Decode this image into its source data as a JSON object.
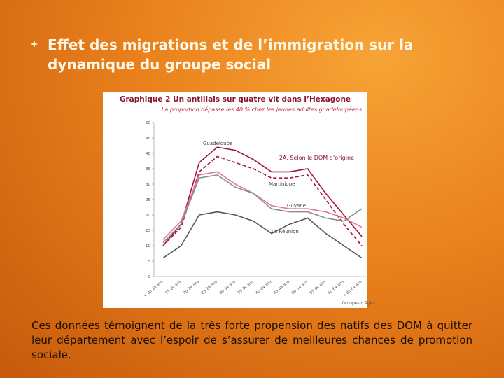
{
  "slide": {
    "title": "Effet des migrations et de l’immigration sur la dynamique du groupe social",
    "body": "Ces données témoignent de la très forte propension des natifs des DOM à quitter leur département avec l’espoir de s’assurer de meilleures chances de promotion sociale."
  },
  "chart_data": {
    "type": "line",
    "title": "Graphique 2 Un antillais sur quatre vit dans l’Hexagone",
    "subtitle": "La proportion dépasse les 40 % chez les jeunes adultes guadeloupéens",
    "annotation": "2A. Selon le DOM d’origine",
    "x_label": "Groupes d’âges",
    "categories": [
      "< de 15 ans",
      "15-19 ans",
      "20-24 ans",
      "25-29 ans",
      "30-34 ans",
      "35-39 ans",
      "40-44 ans",
      "45-49 ans",
      "50-54 ans",
      "55-59 ans",
      "60-64 ans",
      "> de 64 ans"
    ],
    "ylim": [
      0,
      50
    ],
    "yticks": [
      0,
      5,
      10,
      15,
      20,
      25,
      30,
      35,
      40,
      45,
      50
    ],
    "series": [
      {
        "name": "Guadeloupe",
        "color": "#a3123a",
        "values": [
          10,
          17,
          37,
          42,
          41,
          38,
          34,
          34,
          35,
          27,
          20,
          13
        ]
      },
      {
        "color": "#a3123a",
        "dashed": true,
        "values": [
          10,
          16,
          34,
          39,
          37,
          35,
          32,
          32,
          33,
          25,
          17,
          10
        ]
      },
      {
        "name": "Martinique",
        "color": "#e07a8a",
        "values": [
          12,
          18,
          33,
          34,
          30,
          27,
          23,
          22,
          22,
          21,
          19,
          16
        ]
      },
      {
        "name": "Guyane",
        "color": "#8c8c8c",
        "values": [
          11,
          17,
          32,
          33,
          29,
          27,
          22,
          21,
          21,
          19,
          18,
          22
        ]
      },
      {
        "name": "La Réunion",
        "color": "#555555",
        "values": [
          6,
          10,
          20,
          21,
          20,
          18,
          14,
          17,
          19,
          14,
          10,
          6
        ]
      }
    ]
  }
}
